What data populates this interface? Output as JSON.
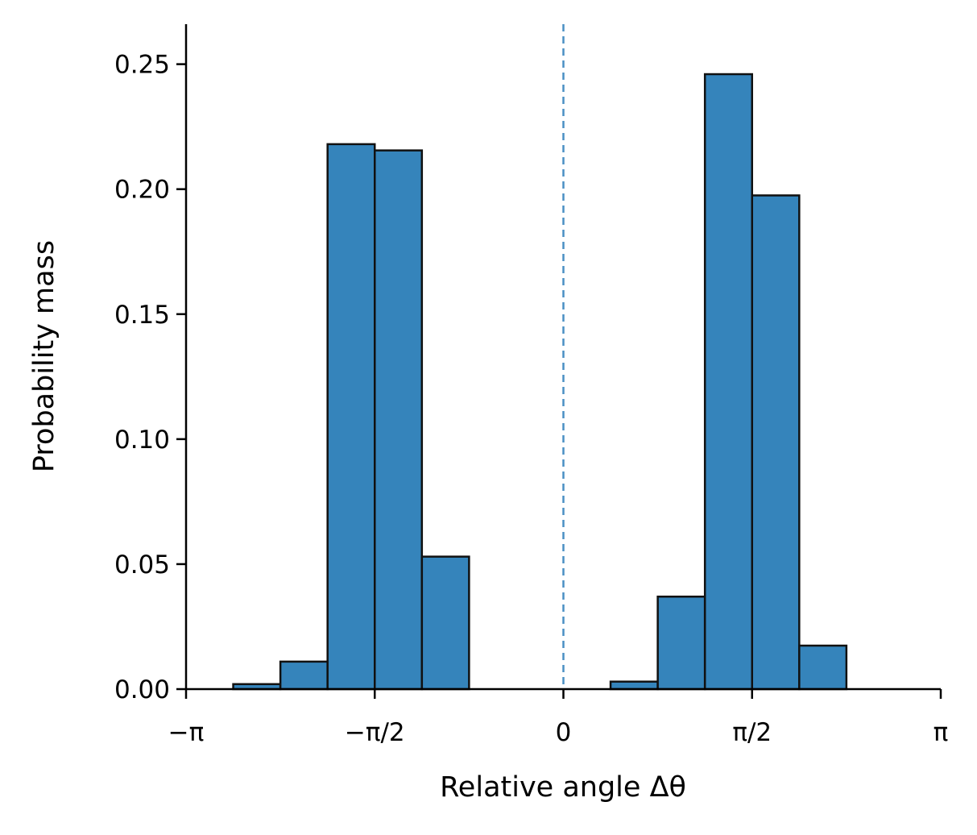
{
  "chart_data": {
    "type": "bar",
    "title": "",
    "xlabel": "Relative angle Δθ",
    "ylabel": "Probability mass",
    "xlim": [
      -3.14159,
      3.14159
    ],
    "ylim": [
      0,
      0.266
    ],
    "grid": false,
    "bin_width": "π/8",
    "bins": [
      {
        "left": "-7π/8",
        "right": "-3π/4",
        "value": 0.002
      },
      {
        "left": "-3π/4",
        "right": "-5π/8",
        "value": 0.011
      },
      {
        "left": "-5π/8",
        "right": "-π/2",
        "value": 0.218
      },
      {
        "left": "-π/2",
        "right": "-3π/8",
        "value": 0.2155
      },
      {
        "left": "-3π/8",
        "right": "-π/4",
        "value": 0.053
      },
      {
        "left": "π/8",
        "right": "π/4",
        "value": 0.003
      },
      {
        "left": "π/4",
        "right": "3π/8",
        "value": 0.037
      },
      {
        "left": "3π/8",
        "right": "π/2",
        "value": 0.246
      },
      {
        "left": "π/2",
        "right": "5π/8",
        "value": 0.1975
      },
      {
        "left": "5π/8",
        "right": "3π/4",
        "value": 0.0174
      }
    ],
    "bin_edges_in_pi": [
      [
        -0.875,
        -0.75
      ],
      [
        -0.75,
        -0.625
      ],
      [
        -0.625,
        -0.5
      ],
      [
        -0.5,
        -0.375
      ],
      [
        -0.375,
        -0.25
      ],
      [
        0.125,
        0.25
      ],
      [
        0.25,
        0.375
      ],
      [
        0.375,
        0.5
      ],
      [
        0.5,
        0.625
      ],
      [
        0.625,
        0.75
      ]
    ],
    "x_ticks": [
      {
        "value_in_pi": -1,
        "label": "−π"
      },
      {
        "value_in_pi": -0.5,
        "label": "−π/2"
      },
      {
        "value_in_pi": 0,
        "label": "0"
      },
      {
        "value_in_pi": 0.5,
        "label": "π/2"
      },
      {
        "value_in_pi": 1,
        "label": "π"
      }
    ],
    "y_ticks": [
      {
        "value": 0,
        "label": "0.00"
      },
      {
        "value": 0.05,
        "label": "0.05"
      },
      {
        "value": 0.1,
        "label": "0.10"
      },
      {
        "value": 0.15,
        "label": "0.15"
      },
      {
        "value": 0.2,
        "label": "0.20"
      },
      {
        "value": 0.25,
        "label": "0.25"
      }
    ],
    "reference_line": {
      "x": 0,
      "style": "dashed"
    },
    "colors": {
      "bar": "#3584bb",
      "edge": "#111111",
      "reference_line": "#4a8fc4"
    }
  }
}
